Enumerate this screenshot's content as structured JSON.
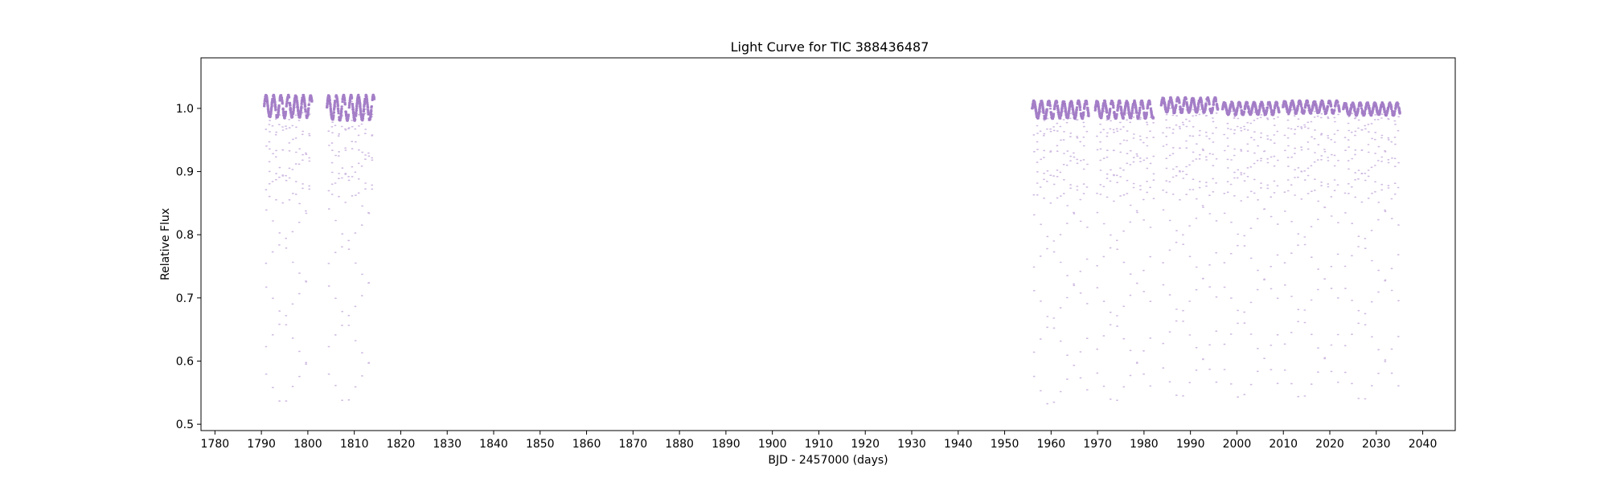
{
  "chart_data": {
    "type": "scatter",
    "title": "Light Curve for TIC 388436487",
    "xlabel": "BJD - 2457000 (days)",
    "ylabel": "Relative Flux",
    "xlim": [
      1777,
      2047
    ],
    "ylim": [
      0.49,
      1.08
    ],
    "xticks": [
      1780,
      1790,
      1800,
      1810,
      1820,
      1830,
      1840,
      1850,
      1860,
      1870,
      1880,
      1890,
      1900,
      1910,
      1920,
      1930,
      1940,
      1950,
      1960,
      1970,
      1980,
      1990,
      2000,
      2010,
      2020,
      2030,
      2040
    ],
    "yticks": [
      0.5,
      0.6,
      0.7,
      0.8,
      0.9,
      1.0
    ],
    "grid": false,
    "legend": "none",
    "series": [
      {
        "color": "#9467bd",
        "segments": [
          {
            "start": 1790.5,
            "end": 1800.8,
            "baseline": 1.003,
            "amplitude": 0.017,
            "mod_period": 1.6,
            "eclipse_period": 1.43,
            "secondary_depth": 0.85,
            "primary_depth": 0.528
          },
          {
            "start": 1804.0,
            "end": 1814.2,
            "baseline": 1.001,
            "amplitude": 0.019,
            "mod_period": 1.6,
            "eclipse_period": 1.43,
            "secondary_depth": 0.853,
            "primary_depth": 0.528
          },
          {
            "start": 1955.8,
            "end": 1968.0,
            "baseline": 0.998,
            "amplitude": 0.013,
            "mod_period": 1.6,
            "eclipse_period": 1.43,
            "secondary_depth": 0.852,
            "primary_depth": 0.523
          },
          {
            "start": 1969.4,
            "end": 1982.0,
            "baseline": 0.998,
            "amplitude": 0.013,
            "mod_period": 1.6,
            "eclipse_period": 1.43,
            "secondary_depth": 0.853,
            "primary_depth": 0.528
          },
          {
            "start": 1983.6,
            "end": 1995.8,
            "baseline": 1.005,
            "amplitude": 0.011,
            "mod_period": 1.6,
            "eclipse_period": 1.43,
            "secondary_depth": 0.856,
            "primary_depth": 0.536
          },
          {
            "start": 1996.8,
            "end": 2009.0,
            "baseline": 1.0,
            "amplitude": 0.009,
            "mod_period": 1.6,
            "eclipse_period": 1.43,
            "secondary_depth": 0.854,
            "primary_depth": 0.535
          },
          {
            "start": 2009.8,
            "end": 2022.0,
            "baseline": 1.002,
            "amplitude": 0.009,
            "mod_period": 1.6,
            "eclipse_period": 1.43,
            "secondary_depth": 0.857,
            "primary_depth": 0.535
          },
          {
            "start": 2022.8,
            "end": 2035.0,
            "baseline": 0.999,
            "amplitude": 0.009,
            "mod_period": 1.6,
            "eclipse_period": 1.43,
            "secondary_depth": 0.853,
            "primary_depth": 0.532
          }
        ]
      }
    ]
  }
}
